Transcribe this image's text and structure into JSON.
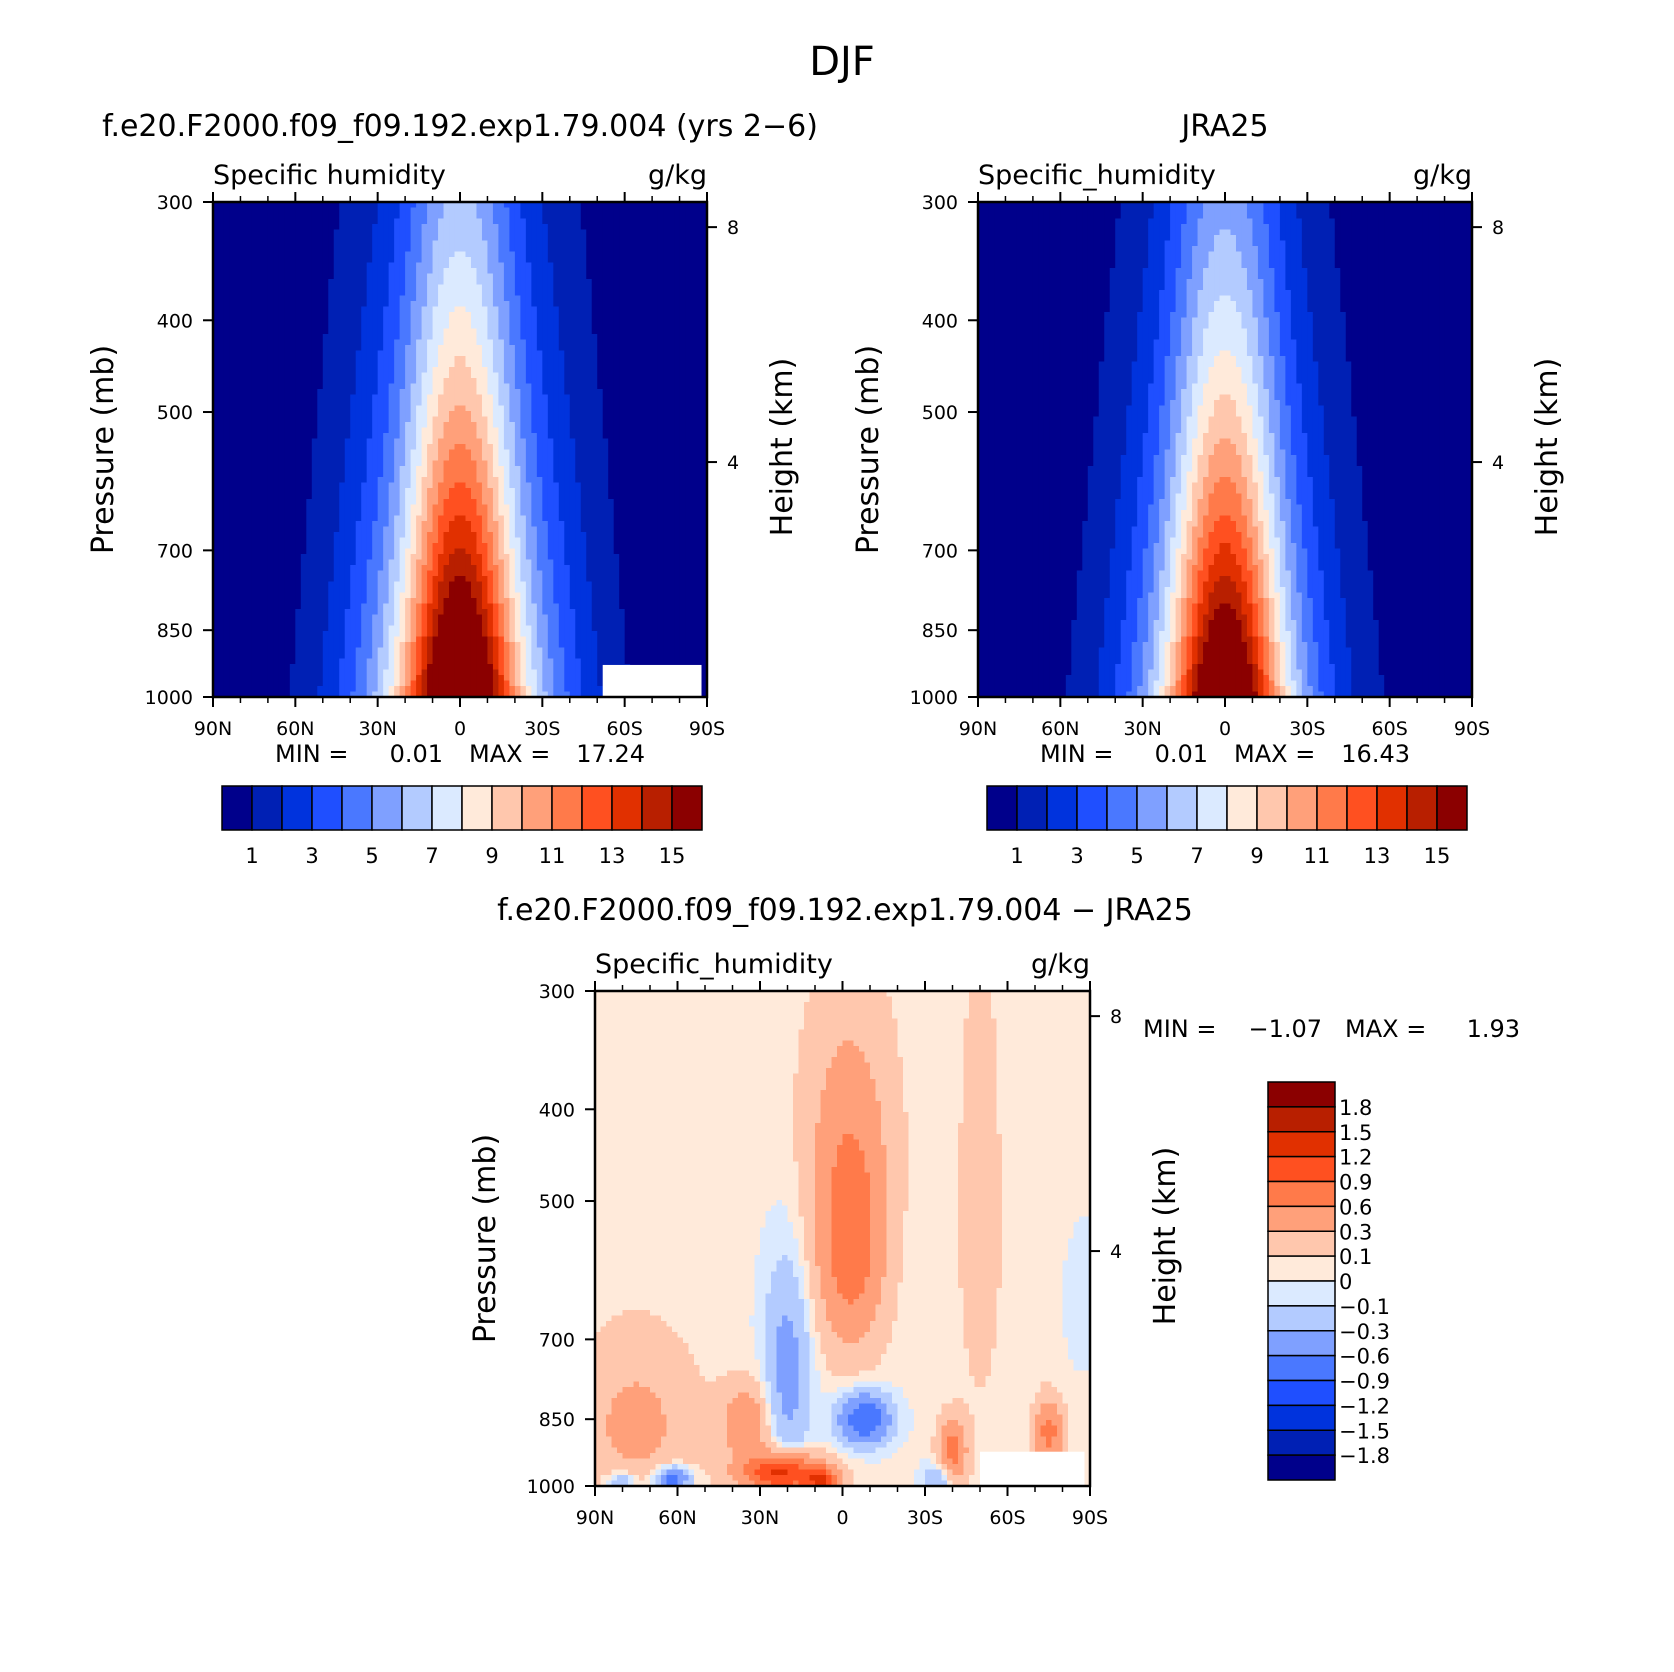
{
  "figure": {
    "title": "DJF"
  },
  "scales": {
    "abs_levels": [
      0,
      1,
      2,
      3,
      4,
      5,
      6,
      7,
      8,
      9,
      10,
      11,
      12,
      13,
      14,
      15,
      99
    ],
    "abs_colors": [
      "#00008b",
      "#0020b4",
      "#0033dd",
      "#1f4fff",
      "#4a78ff",
      "#7fa0ff",
      "#b3cbff",
      "#dbeaff",
      "#ffeada",
      "#ffc7ad",
      "#ffa07a",
      "#ff7a4a",
      "#ff5020",
      "#e13000",
      "#b81f00",
      "#8b0000"
    ],
    "abs_labels": [
      "1",
      "3",
      "5",
      "7",
      "9",
      "11",
      "13",
      "15"
    ],
    "diff_levels": [
      -9,
      -1.8,
      -1.5,
      -1.2,
      -0.9,
      -0.6,
      -0.3,
      -0.1,
      0,
      0.1,
      0.3,
      0.6,
      0.9,
      1.2,
      1.5,
      1.8,
      9
    ],
    "diff_colors": [
      "#00008b",
      "#0020b4",
      "#0033dd",
      "#1f4fff",
      "#4a78ff",
      "#7fa0ff",
      "#b3cbff",
      "#dbeaff",
      "#ffeada",
      "#ffc7ad",
      "#ffa07a",
      "#ff7a4a",
      "#ff5020",
      "#e13000",
      "#b81f00",
      "#8b0000"
    ],
    "diff_labels": [
      "1.8",
      "1.5",
      "1.2",
      "0.9",
      "0.6",
      "0.3",
      "0.1",
      "0",
      "−0.1",
      "−0.3",
      "−0.6",
      "−0.9",
      "−1.2",
      "−1.5",
      "−1.8"
    ]
  },
  "chart_data": [
    {
      "type": "heatmap",
      "case_title": "f.e20.F2000.f09_f09.192.exp1.79.004 (yrs 2−6)",
      "left_label": "Specific humidity",
      "units": "g/kg",
      "ylabel": "Pressure (mb)",
      "y2label": "Height (km)",
      "x_ticks": [
        "90N",
        "60N",
        "30N",
        "0",
        "30S",
        "60S",
        "90S"
      ],
      "y_ticks": [
        300,
        400,
        500,
        700,
        850,
        1000
      ],
      "y2_ticks": [
        8,
        4
      ],
      "xlim": [
        90,
        -90
      ],
      "ylim": [
        1000,
        300
      ],
      "min_label": "MIN =",
      "max_label": "MAX =",
      "min": "0.01",
      "max": "17.24",
      "field": {
        "kind": "abs",
        "peak": 17.24,
        "center": 0,
        "width": 32,
        "scale_height": 1.9
      }
    },
    {
      "type": "heatmap",
      "case_title": "JRA25",
      "left_label": "Specific_humidity",
      "units": "g/kg",
      "ylabel": "Pressure (mb)",
      "y2label": "Height (km)",
      "x_ticks": [
        "90N",
        "60N",
        "30N",
        "0",
        "30S",
        "60S",
        "90S"
      ],
      "y_ticks": [
        300,
        400,
        500,
        700,
        850,
        1000
      ],
      "y2_ticks": [
        8,
        4
      ],
      "xlim": [
        90,
        -90
      ],
      "ylim": [
        1000,
        300
      ],
      "min_label": "MIN =",
      "max_label": "MAX =",
      "min": "0.01",
      "max": "16.43",
      "field": {
        "kind": "abs",
        "peak": 16.43,
        "center": 0,
        "width": 30,
        "scale_height": 1.8
      }
    },
    {
      "type": "heatmap",
      "case_title": "f.e20.F2000.f09_f09.192.exp1.79.004 − JRA25",
      "left_label": "Specific_humidity",
      "units": "g/kg",
      "ylabel": "Pressure (mb)",
      "y2label": "Height (km)",
      "x_ticks": [
        "90N",
        "60N",
        "30N",
        "0",
        "30S",
        "60S",
        "90S"
      ],
      "y_ticks": [
        300,
        400,
        500,
        700,
        850,
        1000
      ],
      "y2_ticks": [
        8,
        4
      ],
      "xlim": [
        90,
        -90
      ],
      "ylim": [
        1000,
        300
      ],
      "min_label": "MIN =",
      "max_label": "MAX =",
      "min": "−1.07",
      "max": "1.93",
      "field": {
        "kind": "diff",
        "blobs": [
          {
            "lat": -3,
            "p": 560,
            "slat": 12,
            "sp": 150,
            "amp": 0.75
          },
          {
            "lat": -2,
            "p": 410,
            "slat": 18,
            "sp": 140,
            "amp": 0.25
          },
          {
            "lat": 22,
            "p": 970,
            "slat": 14,
            "sp": 45,
            "amp": 1.3
          },
          {
            "lat": 7,
            "p": 990,
            "slat": 6,
            "sp": 30,
            "amp": 1.0
          },
          {
            "lat": -40,
            "p": 920,
            "slat": 5,
            "sp": 70,
            "amp": 0.7
          },
          {
            "lat": -75,
            "p": 880,
            "slat": 5,
            "sp": 70,
            "amp": 0.7
          },
          {
            "lat": 75,
            "p": 860,
            "slat": 22,
            "sp": 170,
            "amp": 0.35
          },
          {
            "lat": 35,
            "p": 860,
            "slat": 9,
            "sp": 80,
            "amp": 0.5
          },
          {
            "lat": -50,
            "p": 520,
            "slat": 9,
            "sp": 320,
            "amp": 0.16
          },
          {
            "lat": -8,
            "p": 850,
            "slat": 9,
            "sp": 50,
            "amp": -0.95
          },
          {
            "lat": 20,
            "p": 760,
            "slat": 8,
            "sp": 180,
            "amp": -0.45
          },
          {
            "lat": 62,
            "p": 985,
            "slat": 6,
            "sp": 30,
            "amp": -0.9
          },
          {
            "lat": 80,
            "p": 990,
            "slat": 6,
            "sp": 25,
            "amp": -0.4
          },
          {
            "lat": -88,
            "p": 640,
            "slat": 6,
            "sp": 90,
            "amp": -0.12
          },
          {
            "lat": -35,
            "p": 985,
            "slat": 5,
            "sp": 40,
            "amp": -0.4
          }
        ]
      }
    }
  ]
}
